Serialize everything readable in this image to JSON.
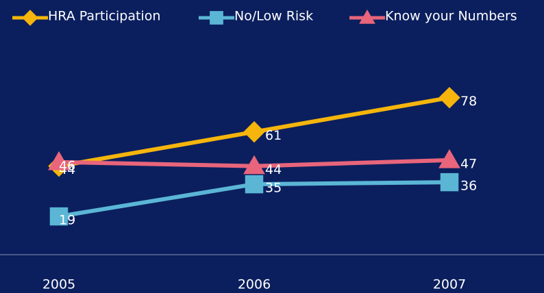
{
  "chart_data": {
    "type": "line",
    "categories": [
      "2005",
      "2006",
      "2007"
    ],
    "series": [
      {
        "name": "HRA Participation",
        "color": "#f5b50c",
        "marker": "diamond",
        "values": [
          44,
          61,
          78
        ]
      },
      {
        "name": "No/Low Risk",
        "color": "#5bb6d6",
        "marker": "square",
        "values": [
          19,
          35,
          36
        ]
      },
      {
        "name": "Know your Numbers",
        "color": "#e8657b",
        "marker": "triangle",
        "values": [
          46,
          44,
          47
        ]
      }
    ],
    "ylim": [
      0,
      100
    ]
  }
}
